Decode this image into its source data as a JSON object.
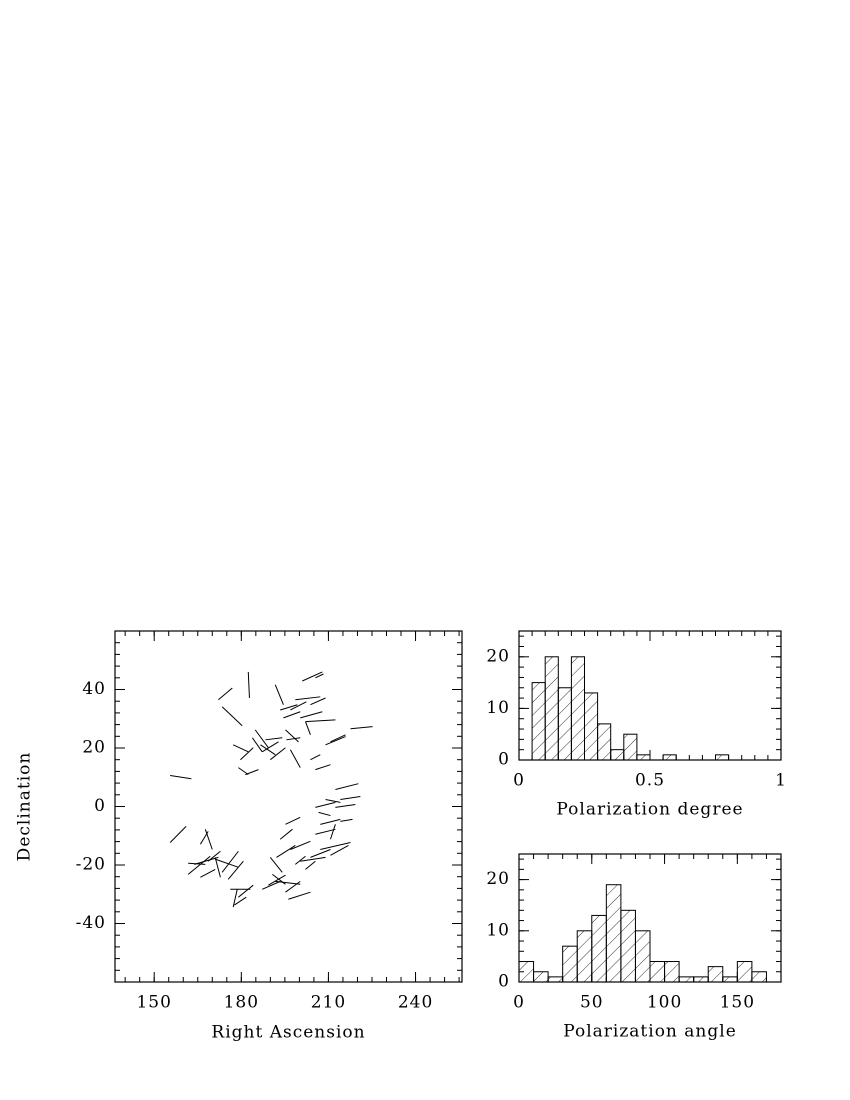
{
  "chart_data": [
    {
      "type": "vector",
      "xlabel": "Right Ascension",
      "ylabel": "Declination",
      "xlim": [
        136.5,
        256
      ],
      "ylim": [
        -60,
        60
      ],
      "xticks": [
        150,
        180,
        210,
        240
      ],
      "yticks": [
        -40,
        -20,
        0,
        20,
        40
      ],
      "xminor": [
        140,
        145,
        150,
        155,
        160,
        165,
        170,
        175,
        180,
        185,
        190,
        195,
        200,
        205,
        210,
        215,
        220,
        225,
        230,
        235,
        240,
        245,
        250,
        255
      ],
      "yminor": [
        -56,
        -52,
        -48,
        -44,
        -40,
        -36,
        -32,
        -28,
        -24,
        -20,
        -16,
        -12,
        -8,
        -4,
        0,
        4,
        8,
        12,
        16,
        20,
        24,
        28,
        32,
        36,
        40,
        44,
        48,
        52,
        56
      ],
      "color": "#000000",
      "x0": [
        155.5,
        155.5,
        172.1,
        173.4,
        182.4,
        177.2,
        179.7,
        179.0,
        181.4,
        183.8,
        184.8,
        186.6,
        187.2,
        188.3,
        190.0,
        191.7,
        193.4,
        194.5,
        195.5,
        196.9,
        195.2,
        198.6,
        196.9,
        200.3,
        202.1,
        203.8,
        205.5,
        201.0,
        202.1,
        203.8,
        205.5,
        209.0,
        210.7,
        217.6,
        167.6,
        165.9,
        161.7,
        163.8,
        165.9,
        168.6,
        171.0,
        171.0,
        173.4,
        175.5,
        161.7,
        177.2,
        176.2,
        179.0,
        177.6,
        190.0,
        190.7,
        187.2,
        189.3,
        191.7,
        195.2,
        196.2,
        192.1,
        193.4,
        195.2,
        196.9,
        198.6,
        200.3,
        202.1,
        203.8,
        205.5,
        207.2,
        206.6,
        209.0,
        212.4,
        212.4,
        214.1,
        205.5,
        214.1,
        207.2,
        210.7,
        210.7
      ],
      "y0": [
        10.6,
        -12.3,
        36.5,
        34.1,
        46.0,
        21.1,
        16.0,
        13.3,
        10.9,
        23.5,
        26.2,
        21.1,
        18.7,
        22.8,
        16.0,
        41.6,
        33.0,
        30.3,
        22.8,
        19.4,
        26.2,
        36.5,
        33.0,
        30.3,
        29.0,
        34.8,
        44.0,
        42.9,
        29.0,
        16.0,
        12.6,
        21.1,
        22.1,
        26.6,
        -7.8,
        -12.9,
        -23.2,
        -19.8,
        -24.2,
        -18.7,
        -17.4,
        -18.0,
        -22.5,
        -24.9,
        -19.4,
        -34.4,
        -28.3,
        -31.0,
        -33.7,
        -17.4,
        -23.2,
        -28.3,
        -26.9,
        -25.6,
        -29.3,
        -31.7,
        -17.4,
        -11.2,
        -6.1,
        -14.7,
        -19.8,
        -18.7,
        -21.5,
        -17.4,
        -9.5,
        -6.1,
        -2.0,
        2.4,
        5.8,
        -0.3,
        2.4,
        -0.3,
        -5.1,
        -14.7,
        -16.7,
        -11.2
      ],
      "x1": [
        162.8,
        161.0,
        176.9,
        180.3,
        182.8,
        182.4,
        184.1,
        182.4,
        185.9,
        187.2,
        189.3,
        191.7,
        192.8,
        194.1,
        195.2,
        194.5,
        199.3,
        200.3,
        200.3,
        200.3,
        199.7,
        207.2,
        202.4,
        207.9,
        203.8,
        209.0,
        208.3,
        207.9,
        212.4,
        207.2,
        210.7,
        215.9,
        215.9,
        225.2,
        170.0,
        168.6,
        169.3,
        172.1,
        171.0,
        172.8,
        172.8,
        179.0,
        179.0,
        180.7,
        167.6,
        178.6,
        183.1,
        184.1,
        181.7,
        194.1,
        195.2,
        193.4,
        195.2,
        200.3,
        200.3,
        203.8,
        198.6,
        197.6,
        200.3,
        203.8,
        202.1,
        209.0,
        205.5,
        210.7,
        212.4,
        214.1,
        210.7,
        214.1,
        220.3,
        219.3,
        221.0,
        212.4,
        218.3,
        217.6,
        216.9,
        212.4
      ],
      "y1": [
        9.5,
        -6.8,
        40.5,
        27.6,
        37.1,
        18.7,
        20.1,
        10.9,
        12.6,
        18.7,
        20.1,
        17.7,
        22.1,
        23.5,
        20.1,
        34.8,
        34.8,
        32.4,
        23.5,
        13.3,
        22.1,
        37.5,
        35.8,
        32.4,
        24.5,
        37.1,
        45.3,
        46.0,
        29.6,
        17.7,
        14.3,
        23.9,
        24.5,
        27.3,
        -14.7,
        -8.5,
        -17.0,
        -17.4,
        -21.5,
        -15.3,
        -24.2,
        -20.8,
        -15.3,
        -18.7,
        -19.8,
        -28.3,
        -28.3,
        -26.9,
        -31.0,
        -22.5,
        -26.6,
        -25.6,
        -23.5,
        -26.6,
        -25.6,
        -29.3,
        -13.3,
        -7.8,
        -3.7,
        -11.9,
        -17.0,
        -17.4,
        -18.7,
        -14.7,
        -7.8,
        -4.4,
        -3.1,
        1.4,
        7.8,
        0.7,
        3.4,
        1.4,
        -4.4,
        -12.3,
        -13.3,
        -6.1
      ]
    },
    {
      "type": "histogram",
      "xlabel": "Polarization degree",
      "xlim": [
        0,
        1
      ],
      "ylim": [
        0,
        25
      ],
      "xticks": [
        0,
        0.5,
        1
      ],
      "yticks": [
        0,
        10,
        20
      ],
      "xminor": [
        0,
        0.05,
        0.1,
        0.15,
        0.2,
        0.25,
        0.3,
        0.35,
        0.4,
        0.45,
        0.5,
        0.55,
        0.6,
        0.65,
        0.7,
        0.75,
        0.8,
        0.85,
        0.9,
        0.95,
        1
      ],
      "yminor": [
        2,
        4,
        6,
        8,
        10,
        12,
        14,
        16,
        18,
        20,
        22,
        24
      ],
      "color": "#000000",
      "bins": [
        0.05,
        0.1,
        0.15,
        0.2,
        0.25,
        0.3,
        0.35,
        0.4,
        0.45,
        0.5,
        0.55,
        0.6,
        0.65,
        0.7,
        0.75,
        0.8
      ],
      "values": [
        15,
        20,
        14,
        20,
        13,
        7,
        2,
        5,
        1,
        0,
        1,
        0,
        0,
        0,
        1
      ]
    },
    {
      "type": "histogram",
      "xlabel": "Polarization angle",
      "xlim": [
        0,
        180
      ],
      "ylim": [
        0,
        25
      ],
      "xticks": [
        0,
        50,
        100,
        150
      ],
      "yticks": [
        0,
        10,
        20
      ],
      "xminor": [
        10,
        20,
        30,
        40,
        50,
        60,
        70,
        80,
        90,
        100,
        110,
        120,
        130,
        140,
        150,
        160,
        170
      ],
      "yminor": [
        2,
        4,
        6,
        8,
        10,
        12,
        14,
        16,
        18,
        20,
        22,
        24
      ],
      "color": "#000000",
      "bins": [
        0,
        10,
        20,
        30,
        40,
        50,
        60,
        70,
        80,
        90,
        100,
        110,
        120,
        130,
        140,
        150,
        160,
        170
      ],
      "values": [
        4,
        2,
        1,
        7,
        10,
        13,
        19,
        14,
        10,
        4,
        4,
        1,
        1,
        3,
        1,
        4,
        2
      ]
    }
  ]
}
